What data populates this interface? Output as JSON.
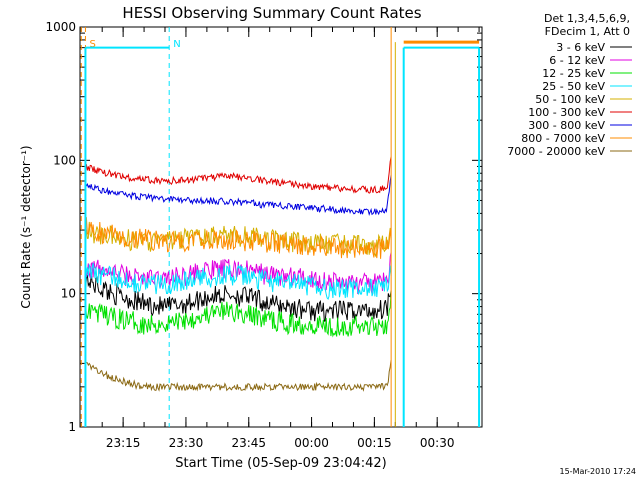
{
  "chart_data": {
    "type": "line",
    "title": "HESSI Observing Summary Count Rates",
    "xlabel": "Start Time (05-Sep-09 23:04:42)",
    "ylabel": "Count Rate (s⁻¹ detector⁻¹)",
    "yscale": "log",
    "ylim": [
      1,
      1000
    ],
    "xlim": [
      "23:04:42",
      "00:40:42"
    ],
    "x_ticks": [
      "23:15",
      "23:30",
      "23:45",
      "00:00",
      "00:15",
      "00:30"
    ],
    "y_ticks": [
      "1",
      "10",
      "100",
      "1000"
    ],
    "legend_header": [
      "Det 1,3,4,5,6,9,",
      "FDecim 1, Att 0"
    ],
    "legend_placement": "right",
    "timestamp": "15-Mar-2010 17:24",
    "annotations": [
      {
        "text": "S",
        "time": "23:06",
        "color": "#ff8c00"
      },
      {
        "text": "N",
        "time": "23:26",
        "color": "#00e5ff"
      }
    ],
    "x": [
      "23:06",
      "23:10",
      "23:15",
      "23:20",
      "23:25",
      "23:30",
      "23:35",
      "23:40",
      "23:45",
      "23:50",
      "23:55",
      "00:00",
      "00:05",
      "00:10",
      "00:15",
      "00:18",
      "00:19"
    ],
    "series": [
      {
        "name": "3 - 6 keV",
        "color": "#000000",
        "values": [
          13,
          11,
          9.5,
          8.5,
          8,
          8.5,
          9.5,
          10,
          9.5,
          8.5,
          8,
          7.5,
          7.5,
          7.5,
          7.5,
          8,
          12
        ]
      },
      {
        "name": "6 - 12 keV",
        "color": "#e000e0",
        "values": [
          16,
          15,
          14,
          13,
          13,
          14,
          15,
          15.5,
          15,
          14,
          13.5,
          13,
          12.5,
          12,
          12,
          12.5,
          18
        ]
      },
      {
        "name": "12 - 25 keV",
        "color": "#00e000",
        "values": [
          8,
          7,
          6.5,
          6,
          6,
          6.5,
          7,
          7.5,
          7,
          6.5,
          6,
          6,
          5.8,
          5.8,
          5.8,
          6,
          9
        ]
      },
      {
        "name": "25 - 50 keV",
        "color": "#00e5ff",
        "values": [
          15,
          14,
          13,
          12,
          12,
          12.5,
          13.5,
          14,
          13.5,
          12.5,
          12,
          11.5,
          11,
          11,
          11,
          11.5,
          16
        ]
      },
      {
        "name": "50 - 100 keV",
        "color": "#d4b000",
        "values": [
          30,
          28,
          26,
          25,
          25,
          26,
          27,
          28,
          27,
          26,
          25,
          24,
          24,
          23.5,
          23,
          23.5,
          30
        ]
      },
      {
        "name": "100 - 300 keV",
        "color": "#e00000",
        "values": [
          90,
          82,
          75,
          72,
          70,
          71,
          74,
          76,
          74,
          70,
          67,
          64,
          62,
          61,
          60,
          62,
          110
        ]
      },
      {
        "name": "300 - 800 keV",
        "color": "#0000e0",
        "values": [
          65,
          60,
          55,
          53,
          51,
          50,
          50,
          49,
          48,
          46,
          45,
          44,
          43,
          42,
          41,
          42,
          80
        ]
      },
      {
        "name": "800 - 7000 keV",
        "color": "#ff8c00",
        "values": [
          32,
          29,
          27,
          26,
          25,
          25,
          25.5,
          25.5,
          25,
          24.5,
          24,
          23,
          22.5,
          22,
          21.5,
          22,
          28
        ]
      },
      {
        "name": "7000 - 20000 keV",
        "color": "#8b6914",
        "values": [
          3,
          2.5,
          2.2,
          2,
          2,
          2,
          2,
          2,
          2,
          2,
          2,
          2,
          2,
          2,
          2,
          2,
          3
        ]
      }
    ],
    "saturated_level": {
      "value": 700,
      "segments": [
        [
          "23:06",
          "23:26"
        ],
        [
          "00:22",
          "00:40"
        ]
      ]
    }
  }
}
